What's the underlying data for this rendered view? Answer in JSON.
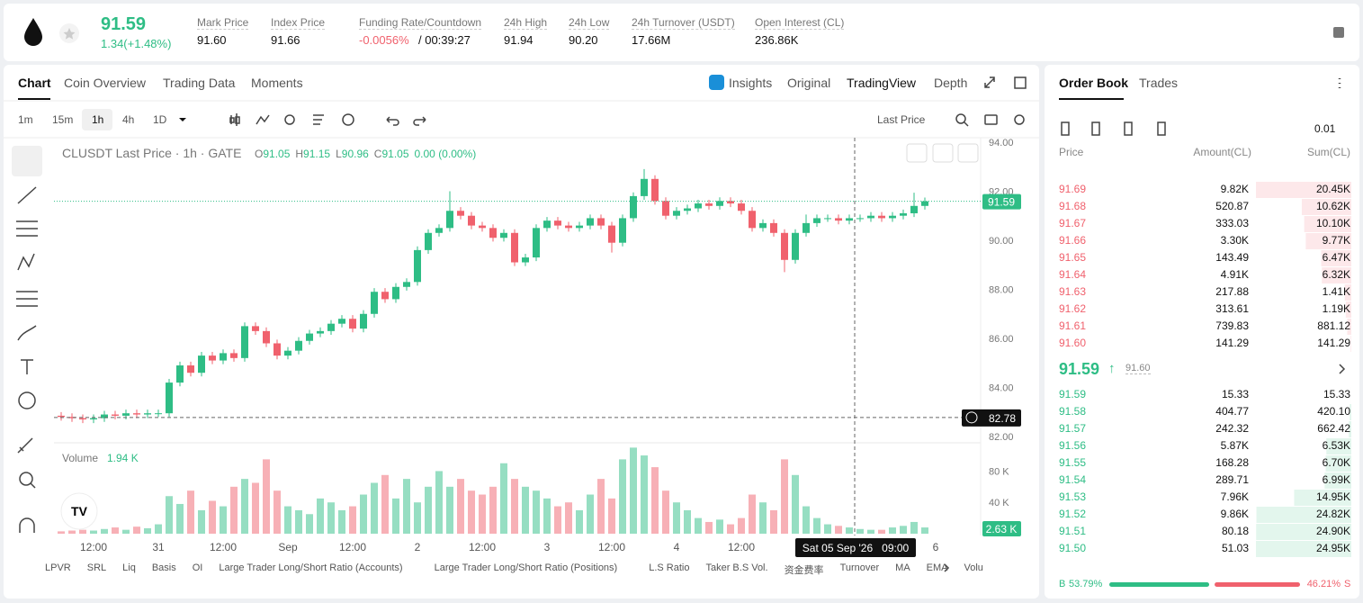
{
  "header": {
    "price": "91.59",
    "change": "1.34(+1.48%)",
    "stats": [
      {
        "label": "Mark Price",
        "value": "91.60"
      },
      {
        "label": "Index Price",
        "value": "91.66"
      },
      {
        "label": "Funding Rate/Countdown",
        "value": "-0.0056%",
        "extra": "/ 00:39:27"
      },
      {
        "label": "24h High",
        "value": "91.94"
      },
      {
        "label": "24h Low",
        "value": "90.20"
      },
      {
        "label": "24h Turnover (USDT)",
        "value": "17.66M"
      },
      {
        "label": "Open Interest (CL)",
        "value": "236.86K"
      }
    ]
  },
  "tabs": [
    "Chart",
    "Coin Overview",
    "Trading Data",
    "Moments"
  ],
  "view_tabs": [
    "Insights",
    "Original",
    "TradingView",
    "Depth"
  ],
  "intervals": [
    "1m",
    "15m",
    "1h",
    "4h",
    "1D"
  ],
  "price_type": "Last Price",
  "indicators": [
    "LPVR",
    "SRL",
    "Liq",
    "Basis",
    "OI",
    "Large Trader Long/Short Ratio (Accounts)",
    "Large Trader Long/Short Ratio (Positions)",
    "L.S Ratio",
    "Taker B.S Vol.",
    "资金费率",
    "Turnover",
    "MA",
    "EMA",
    "Volu"
  ],
  "chart_data": {
    "type": "candlestick",
    "title": "CLUSDT Last Price · 1h · GATE",
    "ohlc": [
      {
        "key": "O",
        "value": "91.05"
      },
      {
        "key": "H",
        "value": "91.15"
      },
      {
        "key": "L",
        "value": "90.96"
      },
      {
        "key": "C",
        "value": "91.05"
      }
    ],
    "change": "0.00 (0.00%)",
    "open": [
      82.85,
      82.8,
      82.75,
      82.7,
      82.75,
      82.9,
      82.85,
      82.95,
      82.9,
      82.95,
      82.95,
      84.2,
      84.9,
      84.6,
      85.3,
      85.1,
      85.4,
      85.2,
      86.5,
      86.3,
      85.8,
      85.3,
      85.5,
      85.9,
      86.2,
      86.3,
      86.6,
      86.8,
      86.4,
      87.0,
      87.9,
      87.6,
      88.1,
      88.3,
      89.6,
      90.3,
      90.5,
      91.2,
      91.0,
      90.6,
      90.5,
      90.1,
      90.3,
      89.1,
      89.3,
      90.5,
      90.8,
      90.6,
      90.5,
      90.6,
      90.9,
      90.6,
      89.9,
      90.9,
      91.8,
      92.5,
      91.6,
      91.0,
      91.2,
      91.3,
      91.5,
      91.4,
      91.6,
      91.5,
      91.2,
      90.5,
      90.7,
      90.3,
      89.2,
      90.3,
      90.7,
      90.9,
      90.9,
      90.8,
      90.9,
      90.9,
      91.0,
      90.9,
      91.0,
      91.1,
      91.4
    ],
    "high": [
      83.0,
      82.95,
      82.9,
      82.9,
      83.05,
      83.05,
      83.1,
      83.1,
      83.1,
      83.1,
      84.35,
      85.05,
      85.05,
      85.45,
      85.45,
      85.55,
      85.55,
      86.65,
      86.65,
      86.45,
      85.95,
      85.65,
      86.05,
      86.35,
      86.45,
      86.75,
      86.95,
      86.95,
      87.15,
      88.05,
      88.05,
      88.25,
      88.45,
      89.75,
      90.45,
      90.65,
      92.0,
      91.35,
      91.15,
      90.75,
      90.65,
      90.45,
      90.45,
      89.45,
      90.65,
      90.95,
      90.95,
      90.75,
      90.75,
      91.05,
      91.05,
      90.75,
      91.05,
      91.95,
      92.9,
      92.65,
      91.75,
      91.35,
      91.45,
      91.65,
      91.65,
      91.75,
      91.75,
      91.65,
      91.35,
      90.85,
      90.85,
      90.45,
      90.45,
      91.05,
      91.05,
      91.05,
      91.05,
      91.05,
      91.05,
      91.15,
      91.15,
      91.15,
      91.25,
      91.94,
      91.74
    ],
    "low": [
      82.65,
      82.6,
      82.55,
      82.55,
      82.6,
      82.7,
      82.7,
      82.75,
      82.75,
      82.8,
      82.8,
      84.05,
      84.45,
      84.45,
      84.95,
      84.95,
      85.05,
      85.05,
      86.15,
      85.65,
      85.15,
      85.15,
      85.35,
      85.75,
      86.05,
      86.15,
      86.45,
      86.25,
      86.25,
      86.85,
      87.45,
      87.45,
      87.95,
      88.15,
      89.45,
      90.15,
      90.35,
      90.85,
      90.45,
      90.35,
      89.95,
      89.95,
      88.95,
      88.95,
      89.15,
      90.35,
      90.45,
      90.35,
      90.35,
      90.45,
      90.45,
      89.5,
      89.75,
      90.75,
      91.65,
      91.45,
      90.85,
      90.85,
      91.05,
      91.15,
      91.25,
      91.25,
      91.35,
      91.05,
      90.35,
      90.35,
      90.15,
      88.7,
      89.05,
      90.15,
      90.55,
      90.75,
      90.65,
      90.65,
      90.75,
      90.75,
      90.75,
      90.75,
      90.85,
      90.95,
      91.25
    ],
    "close": [
      82.8,
      82.75,
      82.7,
      82.75,
      82.9,
      82.85,
      82.95,
      82.9,
      82.95,
      82.95,
      84.2,
      84.9,
      84.6,
      85.3,
      85.1,
      85.4,
      85.2,
      86.5,
      86.3,
      85.8,
      85.3,
      85.5,
      85.9,
      86.2,
      86.3,
      86.6,
      86.8,
      86.4,
      87.0,
      87.9,
      87.6,
      88.1,
      88.3,
      89.6,
      90.3,
      90.5,
      91.2,
      91.0,
      90.6,
      90.5,
      90.1,
      90.3,
      89.1,
      89.3,
      90.5,
      90.8,
      90.6,
      90.5,
      90.6,
      90.9,
      90.6,
      89.9,
      90.9,
      91.8,
      92.5,
      91.6,
      91.0,
      91.2,
      91.3,
      91.5,
      91.4,
      91.6,
      91.5,
      91.2,
      90.5,
      90.7,
      90.3,
      89.2,
      90.3,
      90.7,
      90.9,
      90.9,
      90.8,
      90.9,
      90.9,
      91.0,
      90.9,
      91.0,
      91.1,
      91.4,
      91.59
    ],
    "up_color": "#2ebd85",
    "down_color": "#f0616d",
    "ylim": [
      81.82,
      94.18
    ],
    "yticks": [
      {
        "value": 82,
        "label": "82.00"
      },
      {
        "value": 84,
        "label": "84.00"
      },
      {
        "value": 86,
        "label": "86.00"
      },
      {
        "value": 88,
        "label": "88.00"
      },
      {
        "value": 90,
        "label": "90.00"
      },
      {
        "value": 92,
        "label": "92.00"
      },
      {
        "value": 94,
        "label": "94.00"
      }
    ],
    "xticks": [
      {
        "value": 3,
        "label": "12:00"
      },
      {
        "value": 9,
        "label": "31"
      },
      {
        "value": 15,
        "label": "12:00"
      },
      {
        "value": 21,
        "label": "Sep"
      },
      {
        "value": 27,
        "label": "12:00"
      },
      {
        "value": 33,
        "label": "2"
      },
      {
        "value": 39,
        "label": "12:00"
      },
      {
        "value": 45,
        "label": "3"
      },
      {
        "value": 51,
        "label": "12:00"
      },
      {
        "value": 57,
        "label": "4"
      },
      {
        "value": 63,
        "label": "12:00"
      },
      {
        "value": 81,
        "label": "6"
      }
    ],
    "last_price": {
      "value": 91.59,
      "label": "91.59"
    },
    "crosshair": {
      "value": 82.78,
      "label": "82.78",
      "x": 73.5,
      "time": "Sat 05 Sep '26   09:00"
    },
    "volume": {
      "title": "Volume",
      "current": "1.94 K",
      "last": "2.63 K",
      "ylim": [
        0,
        115
      ],
      "yticks": [
        {
          "value": 40,
          "label": "40 K"
        },
        {
          "value": 80,
          "label": "80 K"
        }
      ],
      "values": [
        3,
        4,
        5,
        4,
        6,
        8,
        5,
        9,
        7,
        12,
        48,
        38,
        55,
        30,
        42,
        35,
        60,
        70,
        65,
        95,
        55,
        35,
        30,
        25,
        45,
        40,
        30,
        35,
        50,
        65,
        75,
        45,
        70,
        40,
        60,
        80,
        60,
        70,
        55,
        50,
        60,
        90,
        70,
        60,
        55,
        45,
        35,
        40,
        30,
        50,
        70,
        45,
        95,
        110,
        100,
        85,
        55,
        40,
        30,
        20,
        15,
        18,
        12,
        20,
        50,
        40,
        30,
        95,
        75,
        35,
        20,
        12,
        10,
        8,
        6,
        5,
        5,
        8,
        10,
        15,
        8
      ]
    }
  },
  "order_book": {
    "tabs": [
      "Order Book",
      "Trades"
    ],
    "precision": "0.01",
    "columns": [
      "Price",
      "Amount(CL)",
      "Sum(CL)"
    ],
    "asks": [
      {
        "price": "91.69",
        "amount": "9.82K",
        "sum": {
          "value": 20450,
          "label": "20.45K"
        }
      },
      {
        "price": "91.68",
        "amount": "520.87",
        "sum": {
          "value": 10620,
          "label": "10.62K"
        }
      },
      {
        "price": "91.67",
        "amount": "333.03",
        "sum": {
          "value": 10100,
          "label": "10.10K"
        }
      },
      {
        "price": "91.66",
        "amount": "3.30K",
        "sum": {
          "value": 9770,
          "label": "9.77K"
        }
      },
      {
        "price": "91.65",
        "amount": "143.49",
        "sum": {
          "value": 6470,
          "label": "6.47K"
        }
      },
      {
        "price": "91.64",
        "amount": "4.91K",
        "sum": {
          "value": 6320,
          "label": "6.32K"
        }
      },
      {
        "price": "91.63",
        "amount": "217.88",
        "sum": {
          "value": 1410,
          "label": "1.41K"
        }
      },
      {
        "price": "91.62",
        "amount": "313.61",
        "sum": {
          "value": 1190,
          "label": "1.19K"
        }
      },
      {
        "price": "91.61",
        "amount": "739.83",
        "sum": {
          "value": 881.12,
          "label": "881.12"
        }
      },
      {
        "price": "91.60",
        "amount": "141.29",
        "sum": {
          "value": 141.29,
          "label": "141.29"
        }
      }
    ],
    "mid": {
      "price": "91.59",
      "mark": "91.60"
    },
    "bids": [
      {
        "price": "91.59",
        "amount": "15.33",
        "sum": {
          "value": 15.33,
          "label": "15.33"
        }
      },
      {
        "price": "91.58",
        "amount": "404.77",
        "sum": {
          "value": 420.1,
          "label": "420.10"
        }
      },
      {
        "price": "91.57",
        "amount": "242.32",
        "sum": {
          "value": 662.42,
          "label": "662.42"
        }
      },
      {
        "price": "91.56",
        "amount": "5.87K",
        "sum": {
          "value": 6530,
          "label": "6.53K"
        }
      },
      {
        "price": "91.55",
        "amount": "168.28",
        "sum": {
          "value": 6700,
          "label": "6.70K"
        }
      },
      {
        "price": "91.54",
        "amount": "289.71",
        "sum": {
          "value": 6990,
          "label": "6.99K"
        }
      },
      {
        "price": "91.53",
        "amount": "7.96K",
        "sum": {
          "value": 14950,
          "label": "14.95K"
        }
      },
      {
        "price": "91.52",
        "amount": "9.86K",
        "sum": {
          "value": 24820,
          "label": "24.82K"
        }
      },
      {
        "price": "91.51",
        "amount": "80.18",
        "sum": {
          "value": 24900,
          "label": "24.90K"
        }
      },
      {
        "price": "91.50",
        "amount": "51.03",
        "sum": {
          "value": 24950,
          "label": "24.95K"
        }
      }
    ],
    "ratio": {
      "buy_label": "B",
      "buy": {
        "value": 53.79,
        "label": "53.79%"
      },
      "sell": {
        "value": 46.21,
        "label": "46.21%"
      },
      "sell_label": "S"
    }
  }
}
